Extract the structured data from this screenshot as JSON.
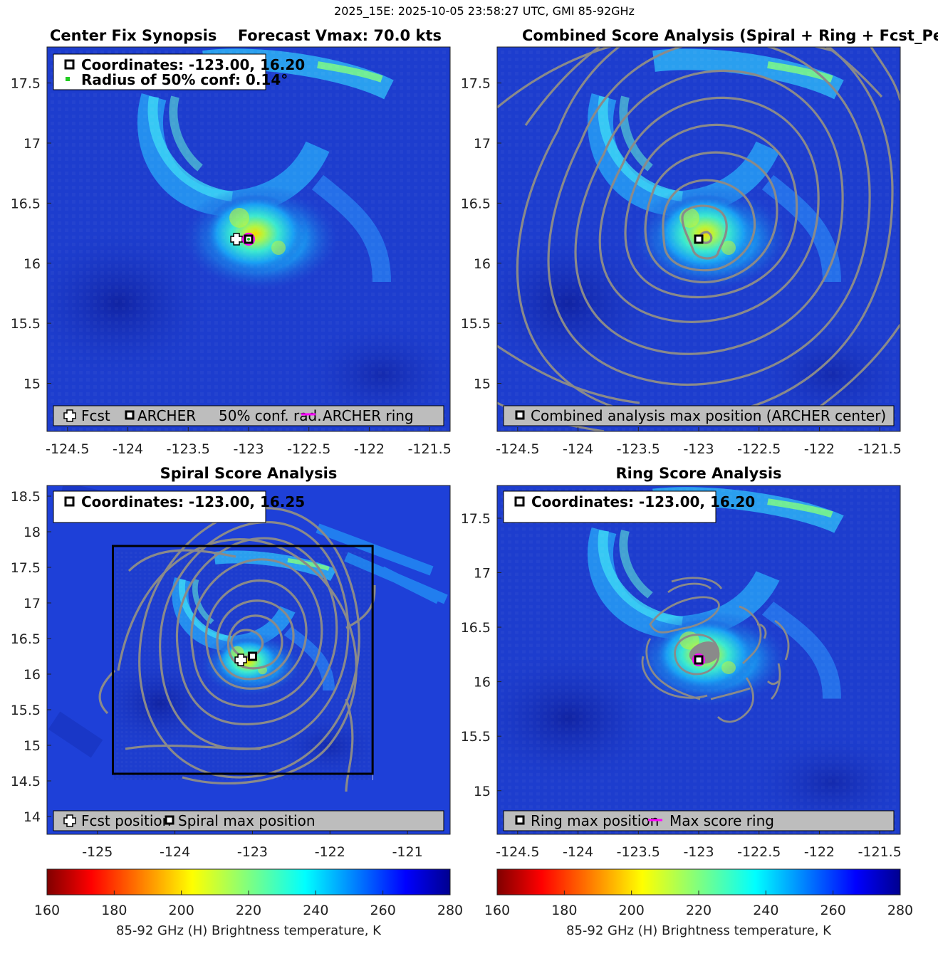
{
  "suptitle": "2025_15E: 2025-10-05 23:58:27 UTC, GMI 85-92GHz",
  "colors": {
    "background_tb": "#1e3fd6",
    "contour": "#8a8a8a",
    "legend_box": "#bdbdbd",
    "archer_ring": "#ff00ff",
    "conf_dot": "#22cc22"
  },
  "chart_data": [
    {
      "id": "center_fix",
      "type": "heatmap",
      "title_left": "Center Fix Synopsis",
      "title_right": "Forecast Vmax: 70.0 kts",
      "xlim": [
        -124.67,
        -121.33
      ],
      "ylim": [
        14.6,
        17.8
      ],
      "xticks": [
        -124.5,
        -124,
        -123.5,
        -123,
        -122.5,
        -122,
        -121.5
      ],
      "xtick_labels": [
        "-124.5",
        "-124",
        "-123.5",
        "-123",
        "-122.5",
        "-122",
        "-121.5"
      ],
      "yticks": [
        15,
        15.5,
        16,
        16.5,
        17,
        17.5
      ],
      "ytick_labels": [
        "15",
        "15.5",
        "16",
        "16.5",
        "17",
        "17.5"
      ],
      "info_lines": [
        "Coordinates: -123.00, 16.20",
        "Radius of 50% conf: 0.14°"
      ],
      "legend": [
        "Fcst",
        "ARCHER",
        "50% conf. rad.",
        "ARCHER ring"
      ],
      "markers": {
        "fcst": [
          -123.1,
          16.2
        ],
        "archer": [
          -123.0,
          16.2
        ]
      }
    },
    {
      "id": "combined",
      "type": "heatmap",
      "title": "Combined Score Analysis (Spiral + Ring + Fcst_Pe",
      "xlim": [
        -124.67,
        -121.33
      ],
      "ylim": [
        14.6,
        17.8
      ],
      "xticks": [
        -124.5,
        -124,
        -123.5,
        -123,
        -122.5,
        -122,
        -121.5
      ],
      "xtick_labels": [
        "-124.5",
        "-124",
        "-123.5",
        "-123",
        "-122.5",
        "-122",
        "-121.5"
      ],
      "yticks": [
        15,
        15.5,
        16,
        16.5,
        17,
        17.5
      ],
      "ytick_labels": [
        "15",
        "15.5",
        "16",
        "16.5",
        "17",
        "17.5"
      ],
      "legend": [
        "Combined analysis max position (ARCHER center)"
      ],
      "markers": {
        "max": [
          -123.0,
          16.2
        ]
      }
    },
    {
      "id": "spiral",
      "type": "heatmap",
      "title": "Spiral Score Analysis",
      "xlim": [
        -125.65,
        -120.45
      ],
      "ylim": [
        13.75,
        18.65
      ],
      "xticks": [
        -125,
        -124,
        -123,
        -122,
        -121
      ],
      "xtick_labels": [
        "-125",
        "-124",
        "-123",
        "-122",
        "-121"
      ],
      "yticks": [
        14,
        14.5,
        15,
        15.5,
        16,
        16.5,
        17,
        17.5,
        18,
        18.5
      ],
      "ytick_labels": [
        "14",
        "14.5",
        "15",
        "15.5",
        "16",
        "16.5",
        "17",
        "17.5",
        "18",
        "18.5"
      ],
      "info_lines": [
        "Coordinates: -123.00, 16.25"
      ],
      "legend": [
        "Fcst position",
        "Spiral max position"
      ],
      "search_box": {
        "lon": [
          -124.8,
          -121.45
        ],
        "lat": [
          14.6,
          17.8
        ]
      },
      "markers": {
        "fcst": [
          -123.15,
          16.2
        ],
        "max": [
          -123.0,
          16.25
        ]
      }
    },
    {
      "id": "ring",
      "type": "heatmap",
      "title": "Ring Score Analysis",
      "xlim": [
        -124.67,
        -121.33
      ],
      "ylim": [
        14.6,
        17.8
      ],
      "xticks": [
        -124.5,
        -124,
        -123.5,
        -123,
        -122.5,
        -122,
        -121.5
      ],
      "xtick_labels": [
        "-124.5",
        "-124",
        "-123.5",
        "-123",
        "-122.5",
        "-122",
        "-121.5"
      ],
      "yticks": [
        15,
        15.5,
        16,
        16.5,
        17,
        17.5
      ],
      "ytick_labels": [
        "15",
        "15.5",
        "16",
        "16.5",
        "17",
        "17.5"
      ],
      "info_lines": [
        "Coordinates: -123.00, 16.20"
      ],
      "legend": [
        "Ring max position",
        "Max score ring"
      ],
      "markers": {
        "max": [
          -123.0,
          16.2
        ]
      }
    }
  ],
  "colorbars": [
    {
      "range": [
        160,
        280
      ],
      "ticks": [
        "160",
        "180",
        "200",
        "220",
        "240",
        "260",
        "280"
      ],
      "label": "85-92 GHz (H) Brightness temperature, K",
      "colormap": "jet_reversed"
    },
    {
      "range": [
        160,
        280
      ],
      "ticks": [
        "160",
        "180",
        "200",
        "220",
        "240",
        "260",
        "280"
      ],
      "label": "85-92 GHz (H) Brightness temperature, K",
      "colormap": "jet_reversed"
    }
  ]
}
